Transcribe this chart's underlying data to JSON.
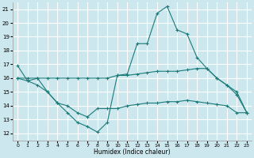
{
  "xlabel": "Humidex (Indice chaleur)",
  "background_color": "#cce8ee",
  "grid_color": "#ffffff",
  "line_color": "#1a7a78",
  "xlim": [
    -0.5,
    23.5
  ],
  "ylim": [
    11.5,
    21.5
  ],
  "xticks": [
    0,
    1,
    2,
    3,
    4,
    5,
    6,
    7,
    8,
    9,
    10,
    11,
    12,
    13,
    14,
    15,
    16,
    17,
    18,
    19,
    20,
    21,
    22,
    23
  ],
  "yticks": [
    12,
    13,
    14,
    15,
    16,
    17,
    18,
    19,
    20,
    21
  ],
  "series": [
    {
      "x": [
        0,
        1,
        2,
        3,
        4,
        5,
        6,
        7,
        8,
        9,
        10,
        11,
        12,
        13,
        14,
        15,
        16,
        17,
        18,
        19,
        20,
        21,
        22,
        23
      ],
      "y": [
        16.9,
        15.8,
        16.0,
        15.0,
        14.2,
        13.5,
        12.8,
        12.5,
        12.1,
        12.8,
        16.2,
        16.3,
        18.5,
        18.5,
        20.7,
        21.2,
        19.5,
        19.2,
        17.5,
        16.7,
        16.0,
        15.5,
        14.8,
        13.5
      ]
    },
    {
      "x": [
        0,
        1,
        2,
        3,
        4,
        5,
        6,
        7,
        8,
        9,
        10,
        11,
        12,
        13,
        14,
        15,
        16,
        17,
        18,
        19,
        20,
        21,
        22,
        23
      ],
      "y": [
        16.0,
        16.0,
        16.0,
        16.0,
        16.0,
        16.0,
        16.0,
        16.0,
        16.0,
        16.0,
        16.2,
        16.2,
        16.3,
        16.4,
        16.5,
        16.5,
        16.5,
        16.6,
        16.7,
        16.7,
        16.0,
        15.5,
        15.0,
        13.5
      ]
    },
    {
      "x": [
        0,
        1,
        2,
        3,
        4,
        5,
        6,
        7,
        8,
        9,
        10,
        11,
        12,
        13,
        14,
        15,
        16,
        17,
        18,
        19,
        20,
        21,
        22,
        23
      ],
      "y": [
        16.0,
        15.8,
        15.5,
        15.0,
        14.2,
        14.0,
        13.5,
        13.2,
        13.8,
        13.8,
        13.8,
        14.0,
        14.1,
        14.2,
        14.2,
        14.3,
        14.3,
        14.4,
        14.3,
        14.2,
        14.1,
        14.0,
        13.5,
        13.5
      ]
    }
  ]
}
